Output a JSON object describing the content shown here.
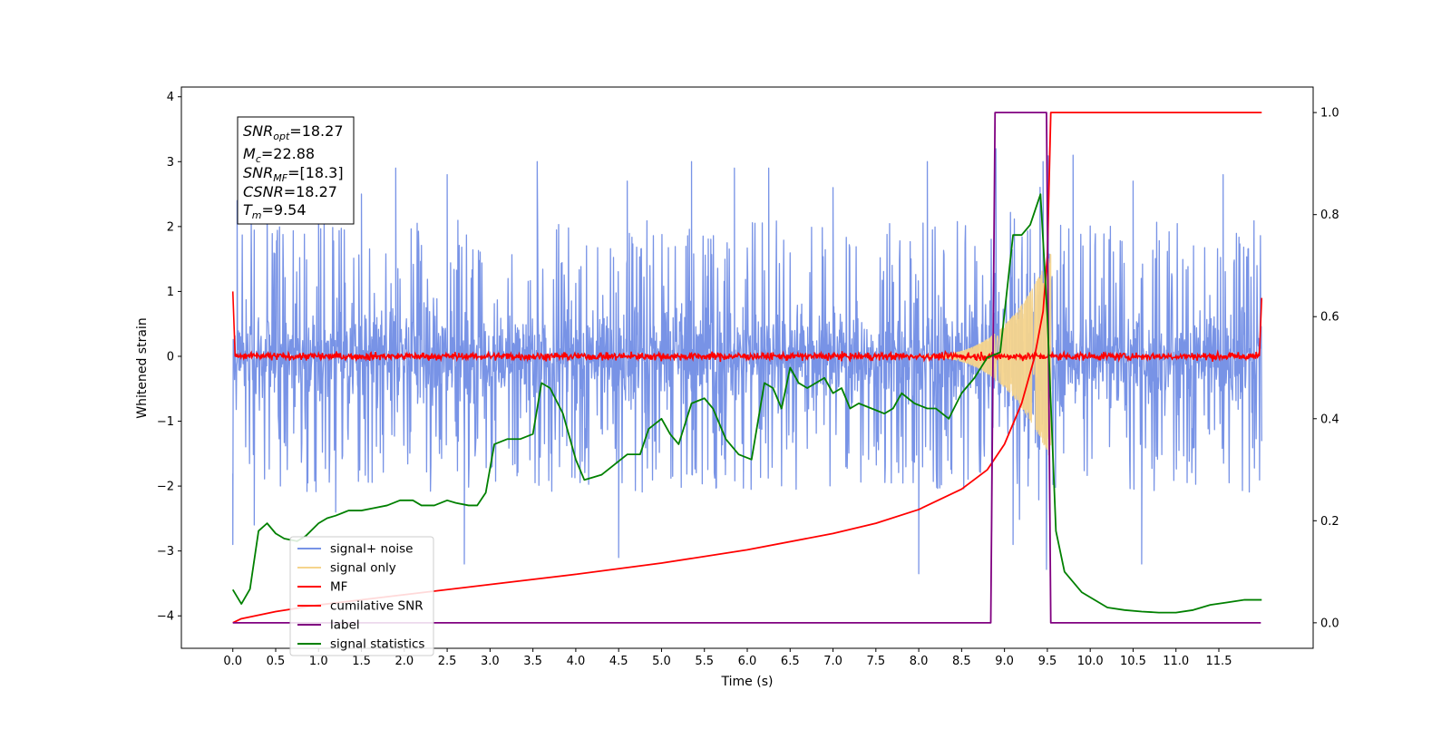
{
  "chart_data": {
    "type": "line",
    "xlabel": "Time (s)",
    "ylabel": "Whitened strain",
    "xlim": [
      -0.6,
      12.6
    ],
    "ylim": [
      -4.5,
      4.15
    ],
    "y2lim": [
      -0.05,
      1.05
    ],
    "x_ticks": [
      "0.0",
      "0.5",
      "1.0",
      "1.5",
      "2.0",
      "2.5",
      "3.0",
      "3.5",
      "4.0",
      "4.5",
      "5.0",
      "5.5",
      "6.0",
      "6.5",
      "7.0",
      "7.5",
      "8.0",
      "8.5",
      "9.0",
      "9.5",
      "10.0",
      "10.5",
      "11.0",
      "11.5"
    ],
    "y_ticks": [
      "4",
      "3",
      "2",
      "1",
      "0",
      "−1",
      "−2",
      "−3",
      "−4"
    ],
    "y2_ticks": [
      "1.0",
      "0.8",
      "0.6",
      "0.4",
      "0.2",
      "0.0"
    ],
    "annotation": {
      "snr_opt": {
        "sym": "SNR",
        "sub": "opt",
        "val": "=18.27"
      },
      "mc": {
        "sym": "M",
        "sub": "c",
        "val": "=22.88"
      },
      "snr_mf": {
        "sym": "SNR",
        "sub": "MF",
        "val": "=[18.3]"
      },
      "csnr": {
        "sym": "CSNR",
        "sub": "",
        "val": "=18.27"
      },
      "tm": {
        "sym": "T",
        "sub": "m",
        "val": "=9.54"
      }
    },
    "legend_position": "lower-left",
    "legend": [
      {
        "label": "signal+ noise",
        "color": "#7893e6"
      },
      {
        "label": "signal only",
        "color": "#f5d48c"
      },
      {
        "label": "MF",
        "color": "#ff0000"
      },
      {
        "label": "cumilative SNR",
        "color": "#ff0000"
      },
      {
        "label": "label",
        "color": "#800080"
      },
      {
        "label": "signal statistics",
        "color": "#008000"
      }
    ],
    "series": [
      {
        "name": "signal+ noise",
        "axis": "left",
        "color": "#7893e6",
        "envelope": {
          "x": [
            0,
            12
          ],
          "upper_typical": 1.7,
          "lower_typical": -1.6
        },
        "peaks": [
          [
            0.05,
            2.4
          ],
          [
            0.4,
            2.6
          ],
          [
            1.0,
            2.6
          ],
          [
            1.5,
            2.5
          ],
          [
            1.9,
            2.9
          ],
          [
            2.5,
            2.8
          ],
          [
            3.55,
            3.0
          ],
          [
            4.6,
            2.7
          ],
          [
            5.35,
            3.0
          ],
          [
            5.85,
            2.9
          ],
          [
            6.25,
            2.9
          ],
          [
            7.0,
            2.6
          ],
          [
            8.1,
            3.0
          ],
          [
            8.9,
            3.2
          ],
          [
            9.45,
            3.0
          ],
          [
            9.8,
            3.1
          ],
          [
            10.5,
            2.7
          ],
          [
            11.55,
            2.8
          ]
        ],
        "troughs": [
          [
            0.0,
            -2.9
          ],
          [
            0.25,
            -2.6
          ],
          [
            1.2,
            -2.4
          ],
          [
            2.7,
            -3.2
          ],
          [
            4.5,
            -3.1
          ],
          [
            8.0,
            -3.35
          ],
          [
            8.85,
            -2.7
          ],
          [
            9.1,
            -2.9
          ],
          [
            10.6,
            -3.2
          ]
        ]
      },
      {
        "name": "signal only",
        "axis": "left",
        "color": "#f5d48c",
        "chirp": {
          "start": 8.3,
          "end": 9.54,
          "peak_amplitude": 1.6
        }
      },
      {
        "name": "MF",
        "axis": "left",
        "color": "#ff0000",
        "baseline": 0.0,
        "noise_amplitude": 0.08,
        "edges": [
          [
            0.0,
            1.0
          ],
          [
            12.0,
            0.9
          ]
        ]
      },
      {
        "name": "cumilative SNR",
        "axis": "right",
        "color": "#ff0000",
        "x": [
          0,
          0.1,
          0.5,
          1.0,
          2.0,
          3.0,
          4.0,
          5.0,
          6.0,
          7.0,
          7.5,
          8.0,
          8.5,
          8.8,
          9.0,
          9.2,
          9.35,
          9.45,
          9.5,
          9.54,
          9.6,
          12.0
        ],
        "y": [
          0.0,
          0.008,
          0.022,
          0.035,
          0.055,
          0.075,
          0.095,
          0.117,
          0.143,
          0.175,
          0.195,
          0.222,
          0.262,
          0.3,
          0.35,
          0.43,
          0.52,
          0.61,
          0.72,
          1.0,
          1.0,
          1.0
        ]
      },
      {
        "name": "label",
        "axis": "right",
        "color": "#800080",
        "x": [
          0.0,
          8.84,
          8.89,
          9.49,
          9.54,
          11.99
        ],
        "y": [
          0.0,
          0.0,
          1.0,
          1.0,
          0.0,
          0.0
        ]
      },
      {
        "name": "signal statistics",
        "axis": "right",
        "color": "#008000",
        "x": [
          0.0,
          0.1,
          0.2,
          0.3,
          0.4,
          0.5,
          0.6,
          0.75,
          0.85,
          1.0,
          1.1,
          1.2,
          1.35,
          1.5,
          1.65,
          1.8,
          1.95,
          2.1,
          2.2,
          2.35,
          2.5,
          2.6,
          2.75,
          2.85,
          2.95,
          3.05,
          3.2,
          3.35,
          3.5,
          3.6,
          3.7,
          3.85,
          4.0,
          4.1,
          4.2,
          4.3,
          4.45,
          4.6,
          4.75,
          4.85,
          5.0,
          5.1,
          5.2,
          5.35,
          5.5,
          5.6,
          5.75,
          5.9,
          6.05,
          6.2,
          6.3,
          6.4,
          6.5,
          6.6,
          6.7,
          6.8,
          6.9,
          7.0,
          7.1,
          7.2,
          7.3,
          7.45,
          7.6,
          7.7,
          7.8,
          7.95,
          8.1,
          8.2,
          8.35,
          8.5,
          8.65,
          8.8,
          8.95,
          9.1,
          9.2,
          9.3,
          9.42,
          9.5,
          9.6,
          9.7,
          9.8,
          9.9,
          10.0,
          10.2,
          10.4,
          10.6,
          10.8,
          11.0,
          11.2,
          11.4,
          11.6,
          11.8,
          12.0
        ],
        "y": [
          0.065,
          0.037,
          0.066,
          0.18,
          0.195,
          0.175,
          0.165,
          0.16,
          0.17,
          0.195,
          0.205,
          0.21,
          0.22,
          0.22,
          0.225,
          0.23,
          0.24,
          0.24,
          0.23,
          0.23,
          0.24,
          0.235,
          0.23,
          0.23,
          0.255,
          0.35,
          0.36,
          0.36,
          0.37,
          0.47,
          0.46,
          0.41,
          0.32,
          0.28,
          0.285,
          0.29,
          0.31,
          0.33,
          0.33,
          0.38,
          0.4,
          0.37,
          0.35,
          0.43,
          0.44,
          0.42,
          0.36,
          0.33,
          0.32,
          0.47,
          0.46,
          0.42,
          0.5,
          0.47,
          0.46,
          0.47,
          0.48,
          0.45,
          0.46,
          0.42,
          0.43,
          0.42,
          0.41,
          0.42,
          0.45,
          0.43,
          0.42,
          0.42,
          0.4,
          0.45,
          0.48,
          0.52,
          0.53,
          0.76,
          0.76,
          0.78,
          0.84,
          0.6,
          0.18,
          0.1,
          0.08,
          0.06,
          0.05,
          0.03,
          0.025,
          0.022,
          0.02,
          0.02,
          0.025,
          0.035,
          0.04,
          0.045,
          0.045
        ]
      }
    ]
  }
}
